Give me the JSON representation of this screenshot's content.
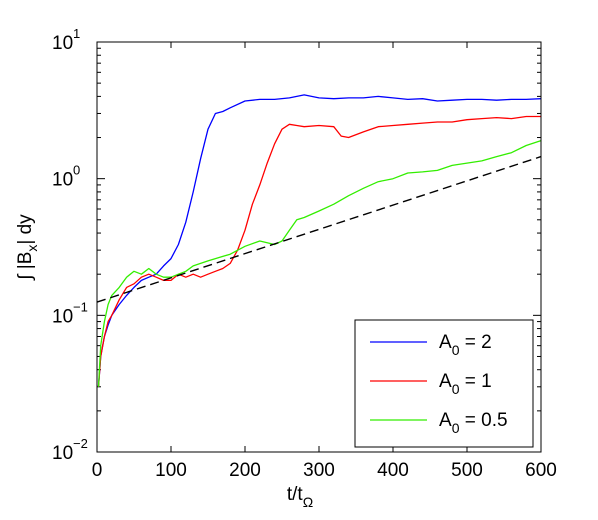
{
  "chart_data": {
    "type": "line",
    "x_scale": "linear",
    "y_scale": "log",
    "xlim": [
      0,
      600
    ],
    "ylim": [
      0.01,
      10
    ],
    "x_ticks": [
      0,
      100,
      200,
      300,
      400,
      500,
      600
    ],
    "y_ticks": [
      {
        "value": 0.01,
        "base": "10",
        "exp": "−2"
      },
      {
        "value": 0.1,
        "base": "10",
        "exp": "−1"
      },
      {
        "value": 1,
        "base": "10",
        "exp": "0"
      },
      {
        "value": 10,
        "base": "10",
        "exp": "1"
      }
    ],
    "xlabel": {
      "main": "t/t",
      "sub": "Ω"
    },
    "ylabel": {
      "pre": "∫ |B",
      "sub": "x",
      "post": "| dy"
    },
    "grid": false,
    "legend_position": "bottom-right",
    "series": [
      {
        "name": "A0 = 2",
        "legend": {
          "pre": "A",
          "sub": "0",
          "post": " = 2"
        },
        "color": "#0000ff",
        "dash": "solid",
        "x": [
          2,
          5,
          10,
          15,
          20,
          30,
          40,
          50,
          60,
          70,
          80,
          90,
          100,
          110,
          120,
          130,
          140,
          150,
          160,
          170,
          180,
          200,
          220,
          240,
          260,
          280,
          300,
          320,
          340,
          360,
          380,
          400,
          420,
          440,
          460,
          480,
          500,
          520,
          540,
          560,
          580,
          600
        ],
        "y": [
          0.03,
          0.05,
          0.07,
          0.085,
          0.1,
          0.12,
          0.14,
          0.16,
          0.18,
          0.19,
          0.2,
          0.23,
          0.26,
          0.33,
          0.48,
          0.8,
          1.4,
          2.3,
          3.0,
          3.1,
          3.3,
          3.7,
          3.8,
          3.8,
          3.9,
          4.1,
          3.9,
          3.85,
          3.9,
          3.9,
          4.0,
          3.9,
          3.8,
          3.85,
          3.7,
          3.75,
          3.8,
          3.8,
          3.75,
          3.8,
          3.8,
          3.85
        ]
      },
      {
        "name": "A0 = 1",
        "legend": {
          "pre": "A",
          "sub": "0",
          "post": " = 1"
        },
        "color": "#ff0000",
        "dash": "solid",
        "x": [
          2,
          5,
          10,
          15,
          20,
          30,
          40,
          50,
          60,
          70,
          80,
          90,
          100,
          110,
          120,
          130,
          140,
          150,
          160,
          170,
          180,
          190,
          200,
          210,
          220,
          230,
          240,
          250,
          260,
          270,
          280,
          300,
          320,
          330,
          340,
          360,
          380,
          400,
          420,
          440,
          460,
          480,
          500,
          520,
          540,
          560,
          580,
          600
        ],
        "y": [
          0.03,
          0.05,
          0.07,
          0.09,
          0.1,
          0.13,
          0.16,
          0.17,
          0.19,
          0.2,
          0.19,
          0.18,
          0.18,
          0.2,
          0.19,
          0.2,
          0.19,
          0.2,
          0.21,
          0.22,
          0.24,
          0.3,
          0.42,
          0.65,
          0.9,
          1.3,
          1.8,
          2.3,
          2.5,
          2.45,
          2.4,
          2.45,
          2.4,
          2.05,
          2.0,
          2.2,
          2.4,
          2.45,
          2.5,
          2.55,
          2.6,
          2.6,
          2.7,
          2.75,
          2.8,
          2.75,
          2.85,
          2.85
        ]
      },
      {
        "name": "A0 = 0.5",
        "legend": {
          "pre": "A",
          "sub": "0",
          "post": " = 0.5"
        },
        "color": "#33ee00",
        "dash": "solid",
        "x": [
          2,
          5,
          10,
          15,
          20,
          30,
          40,
          50,
          60,
          70,
          80,
          90,
          100,
          110,
          120,
          130,
          140,
          150,
          160,
          170,
          180,
          200,
          220,
          240,
          250,
          260,
          270,
          280,
          300,
          320,
          340,
          360,
          380,
          400,
          420,
          440,
          460,
          480,
          500,
          520,
          540,
          560,
          580,
          600
        ],
        "y": [
          0.03,
          0.06,
          0.09,
          0.12,
          0.14,
          0.16,
          0.19,
          0.21,
          0.2,
          0.22,
          0.2,
          0.19,
          0.19,
          0.2,
          0.21,
          0.23,
          0.24,
          0.25,
          0.26,
          0.27,
          0.28,
          0.32,
          0.35,
          0.33,
          0.35,
          0.42,
          0.5,
          0.52,
          0.58,
          0.65,
          0.75,
          0.85,
          0.95,
          1.0,
          1.1,
          1.12,
          1.15,
          1.25,
          1.3,
          1.35,
          1.45,
          1.55,
          1.75,
          1.9
        ]
      },
      {
        "name": "",
        "color": "#000000",
        "dash": "dashed",
        "x": [
          0,
          600
        ],
        "y": [
          0.125,
          1.45
        ]
      }
    ]
  }
}
